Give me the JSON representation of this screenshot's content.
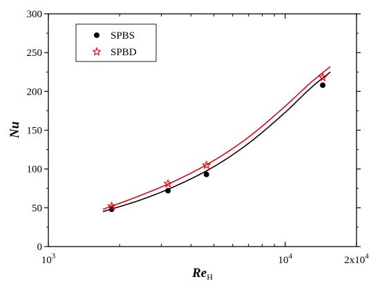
{
  "chart_data": {
    "type": "scatter",
    "title": "",
    "xlabel": "Re",
    "xlabel_subscript": "H",
    "ylabel": "Nu",
    "xscale": "log",
    "xlim": [
      1000,
      20000
    ],
    "ylim": [
      0,
      300
    ],
    "x_ticks": [
      {
        "value": 1000,
        "label": "10",
        "sup": "3"
      },
      {
        "value": 10000,
        "label": "10",
        "sup": "4"
      },
      {
        "value": 20000,
        "label": "2x10",
        "sup": "4"
      }
    ],
    "y_ticks": [
      0,
      50,
      100,
      150,
      200,
      250,
      300
    ],
    "grid": false,
    "legend_position": "top-left",
    "series": [
      {
        "name": "SPBS",
        "marker": "filled-circle",
        "color": "#000000",
        "x": [
          1850,
          3200,
          4650,
          14400
        ],
        "y": [
          48,
          72,
          93,
          208
        ],
        "fit_x": [
          1700,
          2500,
          3500,
          5000,
          7000,
          10000,
          13000,
          15500
        ],
        "fit_y": [
          45,
          61,
          79,
          103,
          133,
          173,
          206,
          225
        ]
      },
      {
        "name": "SPBD",
        "marker": "open-star",
        "color": "#e8000b",
        "x": [
          1850,
          3200,
          4650,
          14400
        ],
        "y": [
          52,
          81,
          105,
          218
        ],
        "fit_x": [
          1700,
          2500,
          3500,
          5000,
          7000,
          10000,
          13000,
          15500
        ],
        "fit_y": [
          48,
          67,
          86,
          111,
          141,
          181,
          213,
          232
        ]
      }
    ]
  }
}
